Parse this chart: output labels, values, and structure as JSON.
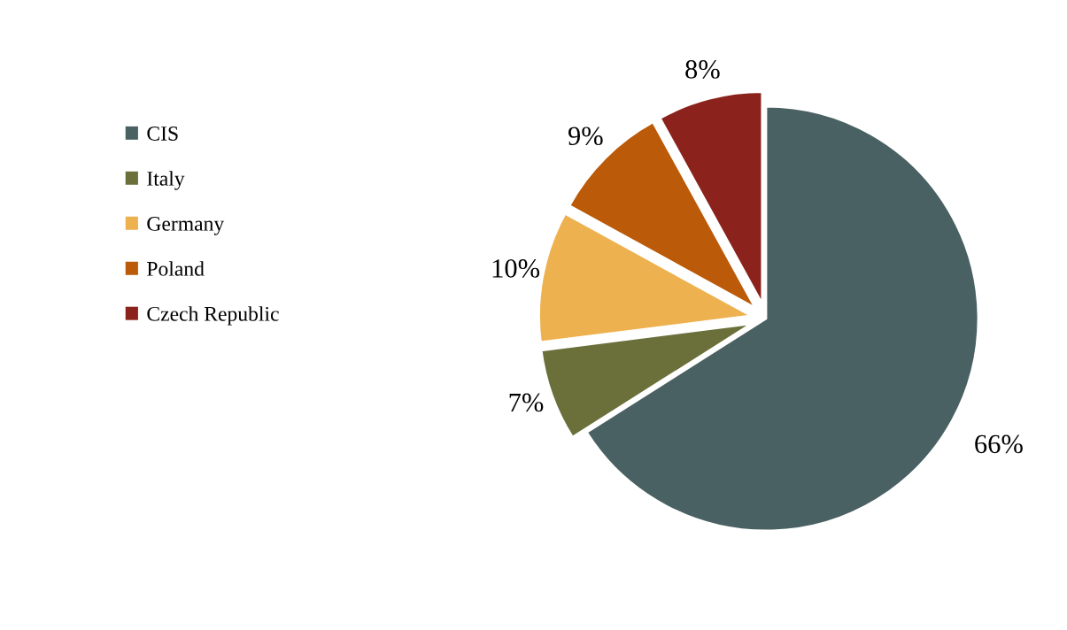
{
  "chart_data": {
    "type": "pie",
    "categories": [
      "CIS",
      "Italy",
      "Germany",
      "Poland",
      "Czech Republic"
    ],
    "values": [
      66,
      7,
      10,
      9,
      8
    ],
    "colors": [
      "#4a6163",
      "#6b703a",
      "#eeb14f",
      "#bb5a08",
      "#8b221b"
    ],
    "value_labels": [
      "66%",
      "7%",
      "10%",
      "9%",
      "8%"
    ],
    "legend": "left"
  }
}
